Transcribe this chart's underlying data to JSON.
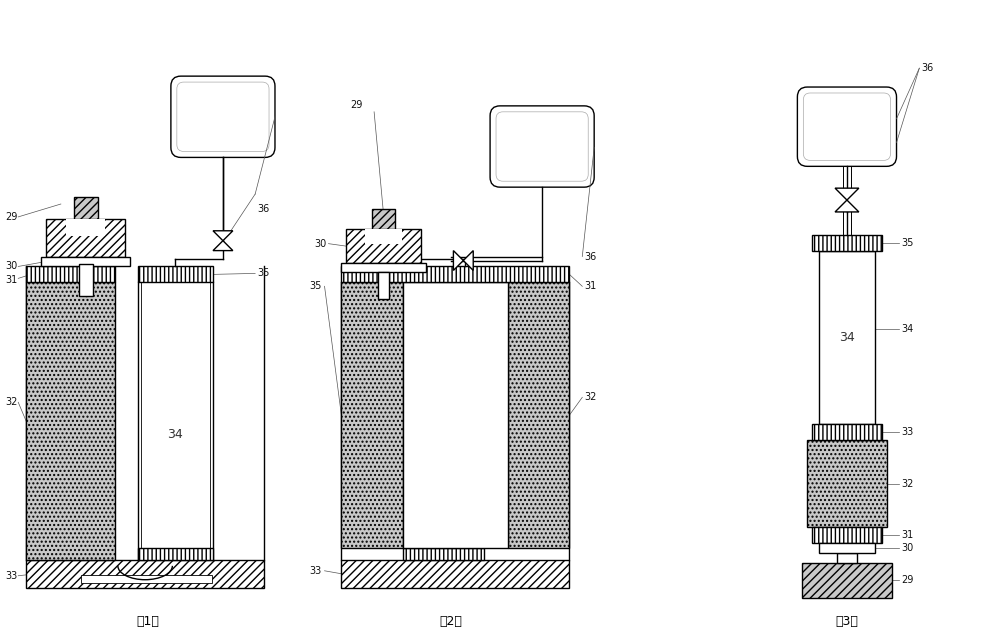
{
  "bg_color": "#ffffff",
  "line_color": "#000000",
  "gray_fill": "#c8c8c8",
  "fig_labels": [
    "(1)",
    "(2)",
    "(3)"
  ]
}
